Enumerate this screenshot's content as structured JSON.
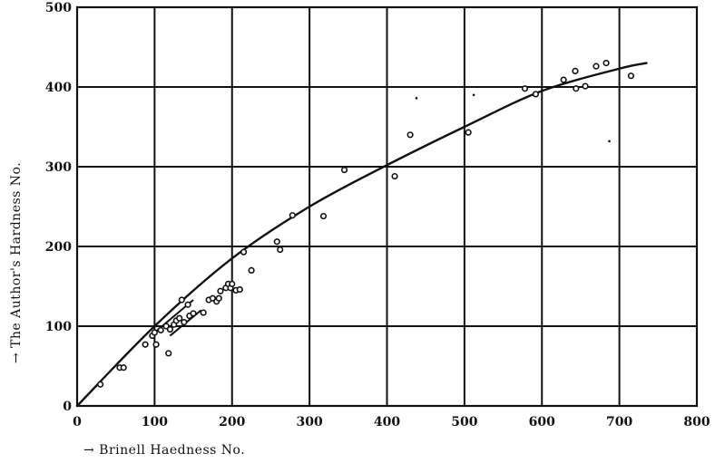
{
  "chart_data": {
    "type": "scatter",
    "title": "",
    "xlabel": "→ Brinell Haedness No.",
    "ylabel": "→ The Author's Hardness No.",
    "xlim": [
      0,
      800
    ],
    "ylim": [
      0,
      500
    ],
    "x_ticks": [
      "0",
      "100",
      "200",
      "300",
      "400",
      "500",
      "600",
      "700",
      "800"
    ],
    "y_ticks": [
      "0",
      "100",
      "200",
      "300",
      "400",
      "500"
    ],
    "grid": true,
    "points": [
      [
        30,
        27
      ],
      [
        55,
        48
      ],
      [
        60,
        48
      ],
      [
        88,
        77
      ],
      [
        97,
        88
      ],
      [
        100,
        92
      ],
      [
        102,
        77
      ],
      [
        108,
        95
      ],
      [
        115,
        100
      ],
      [
        118,
        66
      ],
      [
        120,
        96
      ],
      [
        125,
        102
      ],
      [
        128,
        107
      ],
      [
        132,
        110
      ],
      [
        135,
        133
      ],
      [
        138,
        105
      ],
      [
        143,
        127
      ],
      [
        145,
        113
      ],
      [
        150,
        116
      ],
      [
        163,
        117
      ],
      [
        170,
        133
      ],
      [
        175,
        135
      ],
      [
        180,
        131
      ],
      [
        183,
        135
      ],
      [
        185,
        144
      ],
      [
        192,
        148
      ],
      [
        195,
        153
      ],
      [
        198,
        148
      ],
      [
        200,
        153
      ],
      [
        205,
        145
      ],
      [
        210,
        146
      ],
      [
        215,
        193
      ],
      [
        225,
        170
      ],
      [
        258,
        206
      ],
      [
        262,
        196
      ],
      [
        278,
        239
      ],
      [
        318,
        238
      ],
      [
        345,
        296
      ],
      [
        410,
        288
      ],
      [
        430,
        340
      ],
      [
        505,
        343
      ],
      [
        578,
        398
      ],
      [
        592,
        391
      ],
      [
        628,
        409
      ],
      [
        643,
        420
      ],
      [
        644,
        398
      ],
      [
        656,
        401
      ],
      [
        670,
        426
      ],
      [
        683,
        430
      ],
      [
        715,
        414
      ]
    ],
    "dot_points": [
      [
        438,
        386
      ],
      [
        512,
        390
      ],
      [
        687,
        332
      ]
    ],
    "short_segments": [
      [
        [
          100,
          92
        ],
        [
          150,
          133
        ]
      ],
      [
        [
          120,
          88
        ],
        [
          160,
          120
        ]
      ]
    ],
    "fitted_curve": [
      [
        0,
        0
      ],
      [
        100,
        100
      ],
      [
        200,
        185
      ],
      [
        300,
        250
      ],
      [
        400,
        302
      ],
      [
        500,
        350
      ],
      [
        600,
        395
      ],
      [
        700,
        423
      ],
      [
        735,
        430
      ]
    ]
  }
}
